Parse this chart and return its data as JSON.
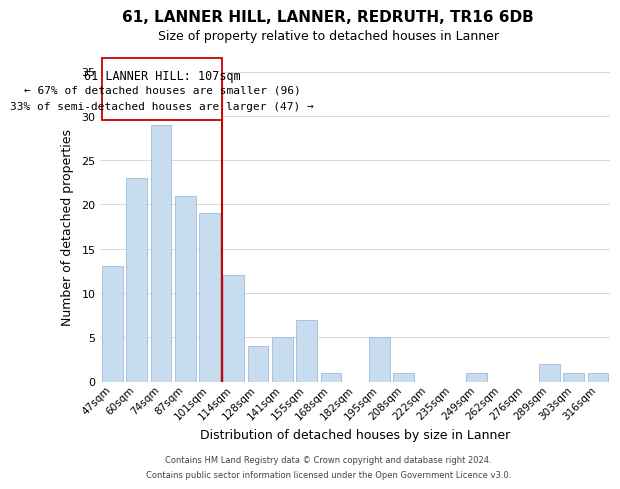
{
  "title": "61, LANNER HILL, LANNER, REDRUTH, TR16 6DB",
  "subtitle": "Size of property relative to detached houses in Lanner",
  "xlabel": "Distribution of detached houses by size in Lanner",
  "ylabel": "Number of detached properties",
  "bar_color": "#c8dcf0",
  "bar_edge_color": "#a0bcd8",
  "categories": [
    "47sqm",
    "60sqm",
    "74sqm",
    "87sqm",
    "101sqm",
    "114sqm",
    "128sqm",
    "141sqm",
    "155sqm",
    "168sqm",
    "182sqm",
    "195sqm",
    "208sqm",
    "222sqm",
    "235sqm",
    "249sqm",
    "262sqm",
    "276sqm",
    "289sqm",
    "303sqm",
    "316sqm"
  ],
  "values": [
    13,
    23,
    29,
    21,
    19,
    12,
    4,
    5,
    7,
    1,
    0,
    5,
    1,
    0,
    0,
    1,
    0,
    0,
    2,
    1,
    1
  ],
  "ylim": [
    0,
    35
  ],
  "yticks": [
    0,
    5,
    10,
    15,
    20,
    25,
    30,
    35
  ],
  "vline_color": "#cc0000",
  "annotation_title": "61 LANNER HILL: 107sqm",
  "annotation_line1": "← 67% of detached houses are smaller (96)",
  "annotation_line2": "33% of semi-detached houses are larger (47) →",
  "footer1": "Contains HM Land Registry data © Crown copyright and database right 2024.",
  "footer2": "Contains public sector information licensed under the Open Government Licence v3.0.",
  "background_color": "#ffffff",
  "grid_color": "#d8d8d8"
}
